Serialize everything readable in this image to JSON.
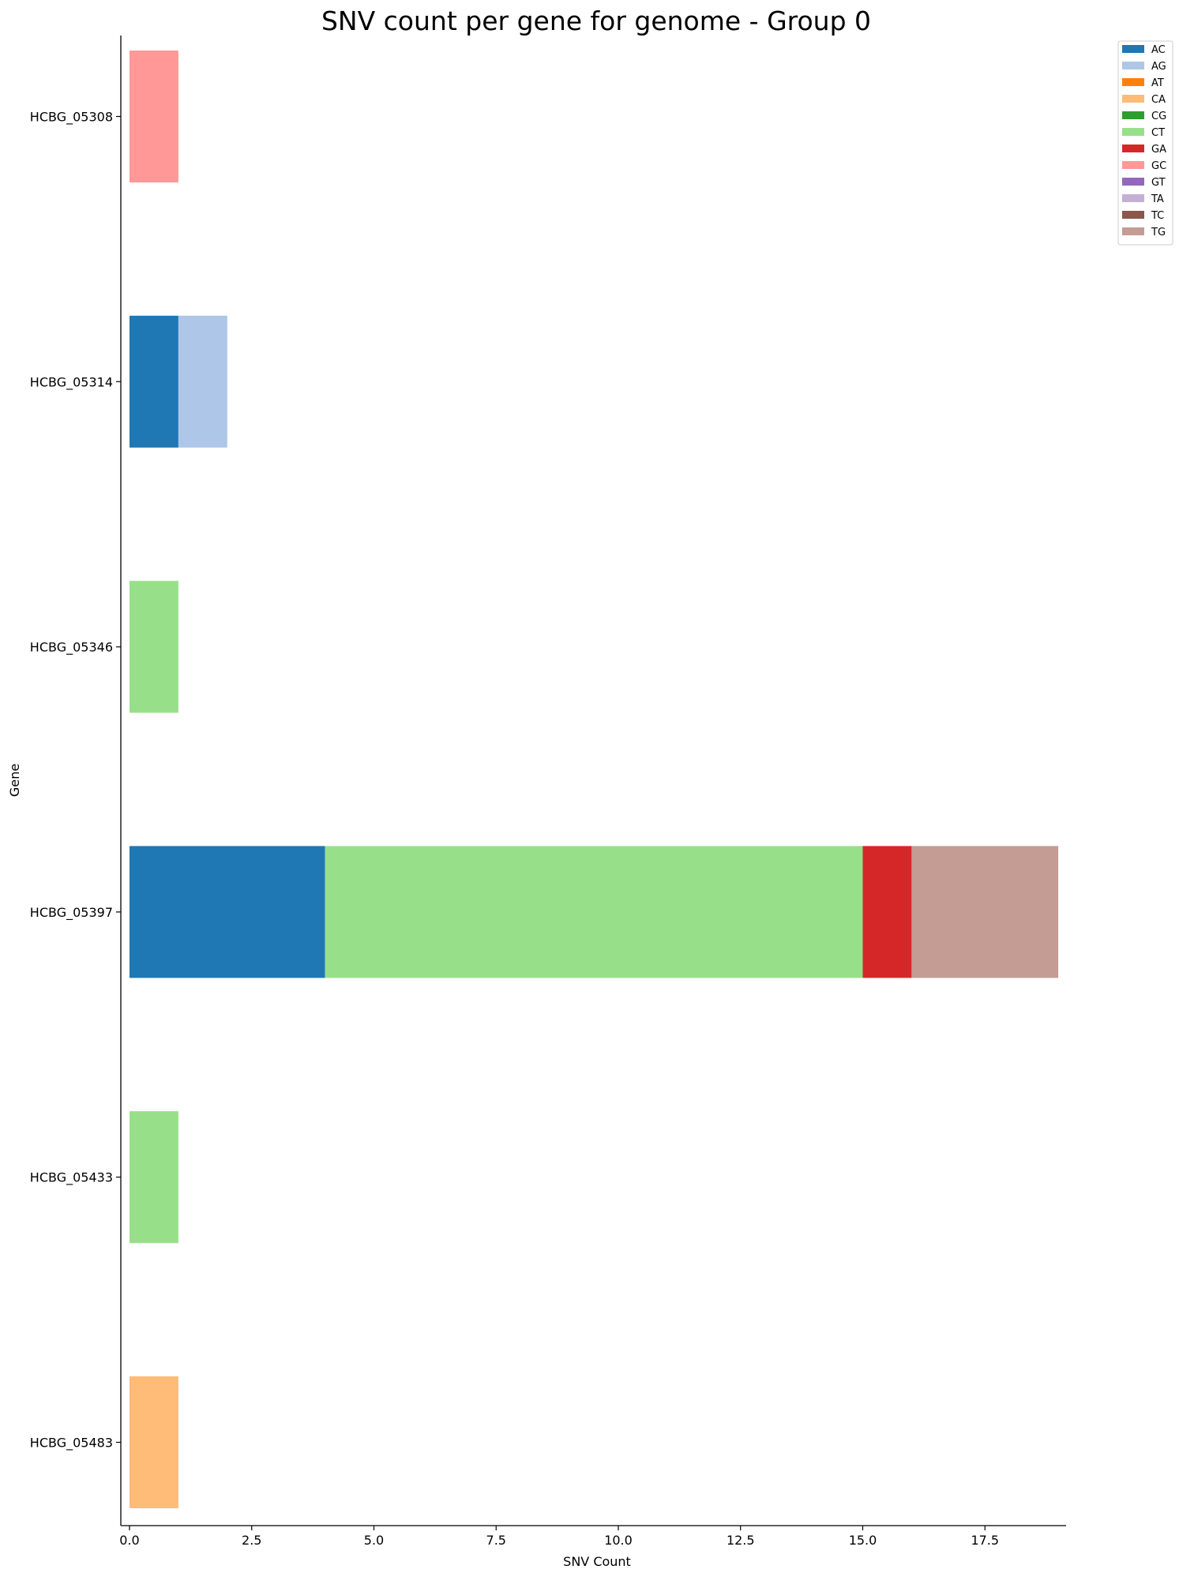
{
  "chart_data": {
    "type": "bar",
    "orientation": "horizontal",
    "stacked": true,
    "title": "SNV count per gene for genome - Group 0",
    "xlabel": "SNV Count",
    "ylabel": "Gene",
    "xlim": [
      0,
      19.2
    ],
    "xticks": [
      0.0,
      2.5,
      5.0,
      7.5,
      10.0,
      12.5,
      15.0,
      17.5
    ],
    "xtick_labels": [
      "0.0",
      "2.5",
      "5.0",
      "7.5",
      "10.0",
      "12.5",
      "15.0",
      "17.5"
    ],
    "grid": false,
    "legend_position": "top-right",
    "categories": [
      "HCBG_05308",
      "HCBG_05314",
      "HCBG_05346",
      "HCBG_05397",
      "HCBG_05433",
      "HCBG_05483"
    ],
    "series": [
      {
        "name": "AC",
        "color": "#1f77b4",
        "values": [
          0,
          1,
          0,
          4,
          0,
          0
        ]
      },
      {
        "name": "AG",
        "color": "#aec7e8",
        "values": [
          0,
          1,
          0,
          0,
          0,
          0
        ]
      },
      {
        "name": "AT",
        "color": "#ff7f0e",
        "values": [
          0,
          0,
          0,
          0,
          0,
          0
        ]
      },
      {
        "name": "CA",
        "color": "#ffbb78",
        "values": [
          0,
          0,
          0,
          0,
          0,
          1
        ]
      },
      {
        "name": "CG",
        "color": "#2ca02c",
        "values": [
          0,
          0,
          0,
          0,
          0,
          0
        ]
      },
      {
        "name": "CT",
        "color": "#98df8a",
        "values": [
          0,
          0,
          1,
          11,
          1,
          0
        ]
      },
      {
        "name": "GA",
        "color": "#d62728",
        "values": [
          0,
          0,
          0,
          1,
          0,
          0
        ]
      },
      {
        "name": "GC",
        "color": "#ff9896",
        "values": [
          1,
          0,
          0,
          0,
          0,
          0
        ]
      },
      {
        "name": "GT",
        "color": "#9467bd",
        "values": [
          0,
          0,
          0,
          0,
          0,
          0
        ]
      },
      {
        "name": "TA",
        "color": "#c5b0d5",
        "values": [
          0,
          0,
          0,
          0,
          0,
          0
        ]
      },
      {
        "name": "TC",
        "color": "#8c564b",
        "values": [
          0,
          0,
          0,
          0,
          0,
          0
        ]
      },
      {
        "name": "TG",
        "color": "#c49c94",
        "values": [
          0,
          0,
          0,
          3,
          0,
          0
        ]
      }
    ]
  }
}
